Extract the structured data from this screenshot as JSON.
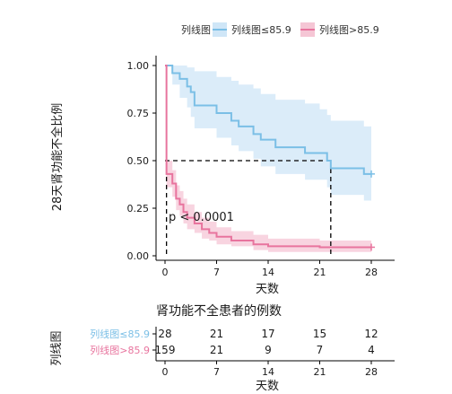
{
  "legend": {
    "title": "列线图",
    "items": [
      {
        "label": "列线图≤85.9",
        "color": "#7bbfe6"
      },
      {
        "label": "列线图>85.9",
        "color": "#e8749e"
      }
    ]
  },
  "chart_data": {
    "type": "line",
    "xlabel": "天数",
    "ylabel": "28天肾功能不全比例",
    "xlim": [
      0,
      28
    ],
    "ylim": [
      0,
      1
    ],
    "x_ticks": [
      0,
      7,
      14,
      21,
      28
    ],
    "y_ticks": [
      "0.00",
      "0.25",
      "0.50",
      "0.75",
      "1.00"
    ],
    "annotation": "p < 0.0001",
    "median_line_y": 0.5,
    "series": [
      {
        "name": "列线图≤85.9",
        "color": "#7bbfe6",
        "fill": "#cfe6f7",
        "points": [
          [
            0,
            1.0
          ],
          [
            1,
            1.0
          ],
          [
            1,
            0.96
          ],
          [
            2,
            0.96
          ],
          [
            2,
            0.93
          ],
          [
            3,
            0.93
          ],
          [
            3,
            0.89
          ],
          [
            3.5,
            0.89
          ],
          [
            3.5,
            0.86
          ],
          [
            4,
            0.86
          ],
          [
            4,
            0.79
          ],
          [
            7,
            0.79
          ],
          [
            7,
            0.75
          ],
          [
            9,
            0.75
          ],
          [
            9,
            0.71
          ],
          [
            10,
            0.71
          ],
          [
            10,
            0.68
          ],
          [
            12,
            0.68
          ],
          [
            12,
            0.64
          ],
          [
            13,
            0.64
          ],
          [
            13,
            0.61
          ],
          [
            15,
            0.61
          ],
          [
            15,
            0.57
          ],
          [
            19,
            0.57
          ],
          [
            19,
            0.54
          ],
          [
            22,
            0.54
          ],
          [
            22,
            0.5
          ],
          [
            22.5,
            0.5
          ],
          [
            22.5,
            0.46
          ],
          [
            27,
            0.46
          ],
          [
            27,
            0.43
          ],
          [
            28,
            0.43
          ]
        ],
        "upper": [
          [
            0,
            1.0
          ],
          [
            1,
            1.0
          ],
          [
            2,
            1.0
          ],
          [
            3,
            0.99
          ],
          [
            4,
            0.97
          ],
          [
            7,
            0.94
          ],
          [
            9,
            0.92
          ],
          [
            10,
            0.9
          ],
          [
            12,
            0.88
          ],
          [
            13,
            0.85
          ],
          [
            15,
            0.82
          ],
          [
            19,
            0.8
          ],
          [
            21,
            0.77
          ],
          [
            22,
            0.74
          ],
          [
            22.5,
            0.71
          ],
          [
            27,
            0.68
          ],
          [
            28,
            0.68
          ]
        ],
        "lower": [
          [
            0,
            1.0
          ],
          [
            1,
            0.9
          ],
          [
            2,
            0.83
          ],
          [
            3,
            0.78
          ],
          [
            3.5,
            0.73
          ],
          [
            4,
            0.67
          ],
          [
            7,
            0.62
          ],
          [
            9,
            0.58
          ],
          [
            10,
            0.55
          ],
          [
            12,
            0.51
          ],
          [
            13,
            0.47
          ],
          [
            15,
            0.43
          ],
          [
            19,
            0.4
          ],
          [
            22,
            0.36
          ],
          [
            22.5,
            0.32
          ],
          [
            27,
            0.29
          ],
          [
            28,
            0.29
          ]
        ]
      },
      {
        "name": "列线图>85.9",
        "color": "#e8749e",
        "fill": "#f5c6d5",
        "points": [
          [
            0,
            1.0
          ],
          [
            0.2,
            1.0
          ],
          [
            0.2,
            0.43
          ],
          [
            1,
            0.43
          ],
          [
            1,
            0.38
          ],
          [
            1.5,
            0.38
          ],
          [
            1.5,
            0.3
          ],
          [
            2,
            0.3
          ],
          [
            2,
            0.27
          ],
          [
            2.5,
            0.27
          ],
          [
            2.5,
            0.23
          ],
          [
            3,
            0.23
          ],
          [
            3,
            0.2
          ],
          [
            4,
            0.2
          ],
          [
            4,
            0.17
          ],
          [
            5,
            0.17
          ],
          [
            5,
            0.14
          ],
          [
            6,
            0.14
          ],
          [
            6,
            0.12
          ],
          [
            7,
            0.12
          ],
          [
            7,
            0.1
          ],
          [
            9,
            0.1
          ],
          [
            9,
            0.08
          ],
          [
            12,
            0.08
          ],
          [
            12,
            0.06
          ],
          [
            14,
            0.06
          ],
          [
            14,
            0.05
          ],
          [
            21,
            0.05
          ],
          [
            21,
            0.045
          ],
          [
            28,
            0.045
          ]
        ],
        "upper": [
          [
            0,
            1.0
          ],
          [
            0.2,
            0.5
          ],
          [
            1,
            0.45
          ],
          [
            1.5,
            0.37
          ],
          [
            2,
            0.34
          ],
          [
            2.5,
            0.3
          ],
          [
            3,
            0.27
          ],
          [
            4,
            0.23
          ],
          [
            5,
            0.2
          ],
          [
            6,
            0.18
          ],
          [
            7,
            0.15
          ],
          [
            9,
            0.13
          ],
          [
            12,
            0.11
          ],
          [
            14,
            0.09
          ],
          [
            21,
            0.08
          ],
          [
            28,
            0.07
          ]
        ],
        "lower": [
          [
            0,
            1.0
          ],
          [
            0.2,
            0.36
          ],
          [
            1,
            0.31
          ],
          [
            1.5,
            0.24
          ],
          [
            2,
            0.21
          ],
          [
            2.5,
            0.17
          ],
          [
            3,
            0.14
          ],
          [
            4,
            0.12
          ],
          [
            5,
            0.09
          ],
          [
            6,
            0.08
          ],
          [
            7,
            0.06
          ],
          [
            9,
            0.05
          ],
          [
            12,
            0.03
          ],
          [
            14,
            0.02
          ],
          [
            21,
            0.02
          ],
          [
            28,
            0.02
          ]
        ]
      }
    ]
  },
  "risk_table": {
    "title": "肾功能不全患者的例数",
    "ylabel": "列线图",
    "xlabel": "天数",
    "x_ticks": [
      0,
      7,
      14,
      21,
      28
    ],
    "rows": [
      {
        "label": "列线图≤85.9",
        "color": "#7bbfe6",
        "counts": [
          "28",
          "21",
          "17",
          "15",
          "12"
        ]
      },
      {
        "label": "列线图>85.9",
        "color": "#e8749e",
        "counts": [
          "159",
          "21",
          "9",
          "7",
          "4"
        ]
      }
    ]
  }
}
